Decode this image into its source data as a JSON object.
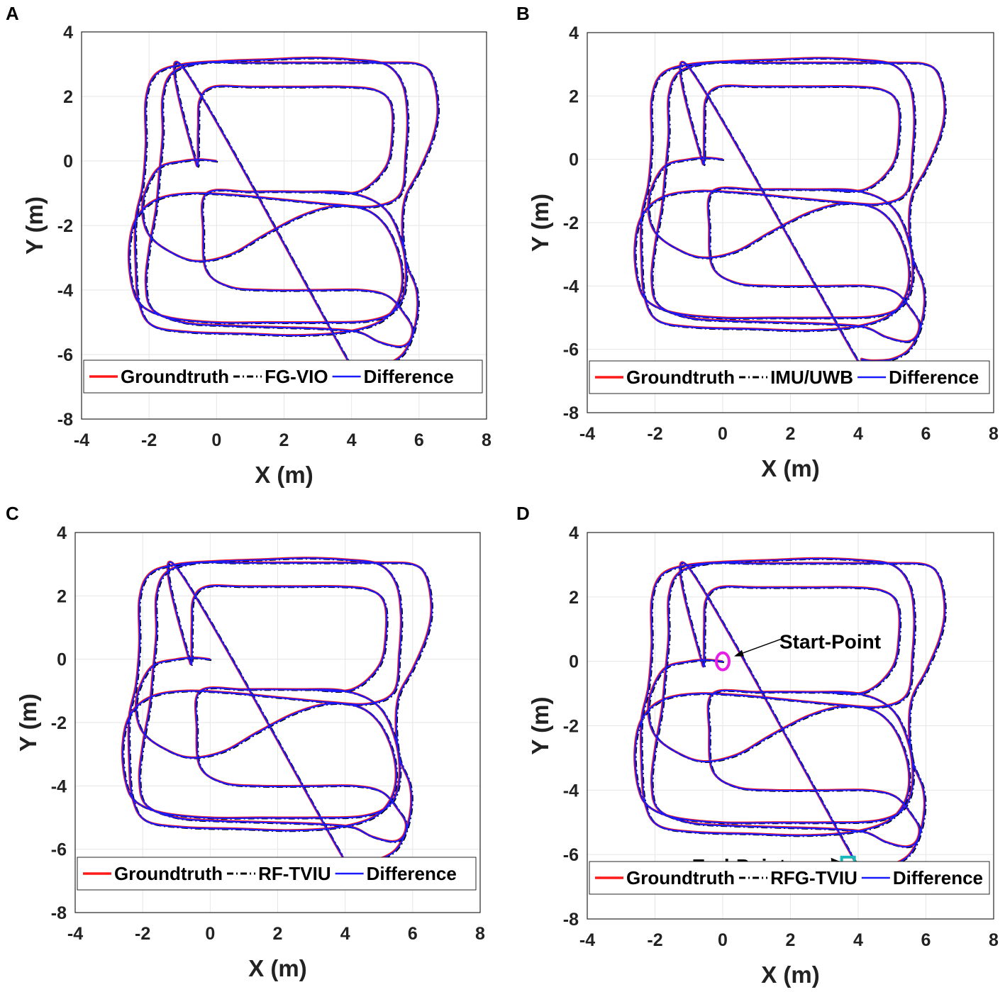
{
  "colors": {
    "groundtruth": "#ff1a1a",
    "estimate": "#000000",
    "difference": "#1a1aff",
    "start_marker": "#e61ee6",
    "end_marker": "#1ab8b8",
    "grid": "#e6e6e6"
  },
  "chart_data": [
    {
      "type": "line",
      "panel": "A",
      "xlabel": "X (m)",
      "ylabel": "Y (m)",
      "xlim": [
        -4,
        8
      ],
      "ylim": [
        -8,
        4
      ],
      "xticks": [
        "-4",
        "-2",
        "0",
        "2",
        "4",
        "6",
        "8"
      ],
      "yticks": [
        "4",
        "2",
        "0",
        "-2",
        "-4",
        "-6",
        "-8"
      ],
      "grid": true,
      "legend_position": "bottom",
      "legend": [
        "Groundtruth",
        "FG-VIO",
        "Difference"
      ],
      "series": [
        {
          "name": "Groundtruth",
          "style": "solid"
        },
        {
          "name": "FG-VIO",
          "style": "dash-dot"
        },
        {
          "name": "Difference",
          "style": "solid"
        }
      ],
      "trajectory": [
        [
          0,
          0
        ],
        [
          -0.5,
          0.05
        ],
        [
          -1,
          0
        ],
        [
          -1.7,
          -0.2
        ],
        [
          -2.1,
          -0.9
        ],
        [
          -2.2,
          -1.6
        ],
        [
          -2.0,
          -2.3
        ],
        [
          -1.4,
          -2.8
        ],
        [
          -0.6,
          -3.1
        ],
        [
          0.4,
          -2.9
        ],
        [
          1.4,
          -2.3
        ],
        [
          2.5,
          -1.7
        ],
        [
          3.5,
          -1.4
        ],
        [
          4.4,
          -1.5
        ],
        [
          5.0,
          -2.0
        ],
        [
          5.4,
          -2.9
        ],
        [
          5.5,
          -3.8
        ],
        [
          5.3,
          -4.5
        ],
        [
          4.8,
          -5.0
        ],
        [
          3.8,
          -5.3
        ],
        [
          2.4,
          -5.4
        ],
        [
          0.8,
          -5.35
        ],
        [
          -0.8,
          -5.3
        ],
        [
          -1.9,
          -5.1
        ],
        [
          -2.3,
          -4.4
        ],
        [
          -2.4,
          -3.2
        ],
        [
          -2.4,
          -1.8
        ],
        [
          -2.2,
          -0.8
        ],
        [
          -2.1,
          0.5
        ],
        [
          -2.1,
          1.9
        ],
        [
          -1.8,
          2.7
        ],
        [
          -1.0,
          3.0
        ],
        [
          0.2,
          3.1
        ],
        [
          1.5,
          3.15
        ],
        [
          2.8,
          3.2
        ],
        [
          4.0,
          3.15
        ],
        [
          5.0,
          3.0
        ],
        [
          5.5,
          2.4
        ],
        [
          5.65,
          1.4
        ],
        [
          5.6,
          0.2
        ],
        [
          5.45,
          -1.0
        ],
        [
          4.7,
          -1.4
        ],
        [
          3.5,
          -1.35
        ],
        [
          2.0,
          -1.2
        ],
        [
          0.5,
          -1.05
        ],
        [
          -0.8,
          -1.0
        ],
        [
          -1.8,
          -1.2
        ],
        [
          -2.4,
          -1.8
        ],
        [
          -2.6,
          -2.8
        ],
        [
          -2.5,
          -3.9
        ],
        [
          -2.2,
          -4.5
        ],
        [
          -1.4,
          -4.85
        ],
        [
          0,
          -5.0
        ],
        [
          1.5,
          -5.0
        ],
        [
          3.0,
          -5.0
        ],
        [
          4.5,
          -4.95
        ],
        [
          5.3,
          -4.6
        ],
        [
          5.6,
          -3.8
        ],
        [
          5.5,
          -2.6
        ],
        [
          5.0,
          -1.5
        ],
        [
          4.0,
          -1.0
        ],
        [
          2.5,
          -0.95
        ],
        [
          1.0,
          -0.95
        ],
        [
          -0.3,
          -1.0
        ],
        [
          -0.4,
          -2.2
        ],
        [
          -0.3,
          -3.4
        ],
        [
          0.4,
          -3.9
        ],
        [
          1.5,
          -4.0
        ],
        [
          3.0,
          -4.0
        ],
        [
          4.3,
          -4.0
        ],
        [
          5.1,
          -4.2
        ],
        [
          5.6,
          -4.8
        ],
        [
          5.8,
          -5.2
        ],
        [
          5.7,
          -5.6
        ],
        [
          5.4,
          -5.75
        ],
        [
          4.8,
          -5.6
        ],
        [
          4.2,
          -5.3
        ],
        [
          3.2,
          -5.2
        ],
        [
          1.8,
          -5.15
        ],
        [
          0.3,
          -5.1
        ],
        [
          -1.0,
          -5.0
        ],
        [
          -1.9,
          -4.6
        ],
        [
          -2.1,
          -3.8
        ],
        [
          -2.0,
          -2.7
        ],
        [
          -1.8,
          -1.5
        ],
        [
          -1.7,
          -0.4
        ],
        [
          -1.6,
          0.8
        ],
        [
          -1.6,
          2.0
        ],
        [
          -1.3,
          2.75
        ],
        [
          -0.4,
          3.05
        ],
        [
          0.8,
          3.05
        ],
        [
          2.2,
          3.05
        ],
        [
          3.6,
          3.05
        ],
        [
          5.0,
          3.05
        ],
        [
          6.0,
          3.0
        ],
        [
          6.4,
          2.6
        ],
        [
          6.55,
          1.6
        ],
        [
          6.4,
          0.7
        ],
        [
          6.0,
          -0.3
        ],
        [
          5.6,
          -1.1
        ],
        [
          5.5,
          -2.0
        ],
        [
          5.6,
          -3.1
        ],
        [
          5.9,
          -3.9
        ],
        [
          5.95,
          -4.6
        ],
        [
          5.8,
          -5.4
        ],
        [
          5.5,
          -6.0
        ],
        [
          5.0,
          -6.3
        ],
        [
          4.4,
          -6.35
        ],
        [
          4.1,
          -6.3
        ],
        [
          3.9,
          -6.2
        ],
        [
          -1.0,
          2.9
        ],
        [
          -0.6,
          -0.1
        ],
        [
          -0.55,
          1.0
        ],
        [
          -0.5,
          1.9
        ],
        [
          -0.1,
          2.3
        ],
        [
          1.0,
          2.3
        ],
        [
          2.5,
          2.3
        ],
        [
          3.8,
          2.3
        ],
        [
          4.7,
          2.2
        ],
        [
          5.15,
          1.8
        ],
        [
          5.2,
          0.8
        ],
        [
          5.0,
          -0.2
        ],
        [
          4.2,
          -0.95
        ],
        [
          3.0,
          -0.95
        ]
      ]
    },
    {
      "type": "line",
      "panel": "B",
      "xlabel": "X (m)",
      "ylabel": "Y (m)",
      "xlim": [
        -4,
        8
      ],
      "ylim": [
        -8,
        4
      ],
      "xticks": [
        "-4",
        "-2",
        "0",
        "2",
        "4",
        "6",
        "8"
      ],
      "yticks": [
        "4",
        "2",
        "0",
        "-2",
        "-4",
        "-6",
        "-8"
      ],
      "grid": true,
      "legend_position": "bottom",
      "legend": [
        "Groundtruth",
        "IMU/UWB",
        "Difference"
      ],
      "series": [
        {
          "name": "Groundtruth",
          "style": "solid"
        },
        {
          "name": "IMU/UWB",
          "style": "dash-dot"
        },
        {
          "name": "Difference",
          "style": "solid"
        }
      ],
      "trajectory": "same_as_A"
    },
    {
      "type": "line",
      "panel": "C",
      "xlabel": "X (m)",
      "ylabel": "Y (m)",
      "xlim": [
        -4,
        8
      ],
      "ylim": [
        -8,
        4
      ],
      "xticks": [
        "-4",
        "-2",
        "0",
        "2",
        "4",
        "6",
        "8"
      ],
      "yticks": [
        "4",
        "2",
        "0",
        "-2",
        "-4",
        "-6",
        "-8"
      ],
      "grid": true,
      "legend_position": "bottom",
      "legend": [
        "Groundtruth",
        "RF-TVIU",
        "Difference"
      ],
      "series": [
        {
          "name": "Groundtruth",
          "style": "solid"
        },
        {
          "name": "RF-TVIU",
          "style": "dash-dot"
        },
        {
          "name": "Difference",
          "style": "solid"
        }
      ],
      "trajectory": "same_as_A"
    },
    {
      "type": "line",
      "panel": "D",
      "xlabel": "X (m)",
      "ylabel": "Y (m)",
      "xlim": [
        -4,
        8
      ],
      "ylim": [
        -8,
        4
      ],
      "xticks": [
        "-4",
        "-2",
        "0",
        "2",
        "4",
        "6",
        "8"
      ],
      "yticks": [
        "4",
        "2",
        "0",
        "-2",
        "-4",
        "-6",
        "-8"
      ],
      "grid": true,
      "legend_position": "bottom",
      "legend": [
        "Groundtruth",
        "RFG-TVIU",
        "Difference"
      ],
      "series": [
        {
          "name": "Groundtruth",
          "style": "solid"
        },
        {
          "name": "RFG-TVIU",
          "style": "dash-dot"
        },
        {
          "name": "Difference",
          "style": "solid"
        }
      ],
      "trajectory": "same_as_A",
      "annotations": [
        {
          "text": "Start-Point",
          "point": [
            0,
            0
          ],
          "marker": "circle"
        },
        {
          "text": "End-Point",
          "point": [
            3.7,
            -6.3
          ],
          "marker": "square"
        }
      ]
    }
  ]
}
